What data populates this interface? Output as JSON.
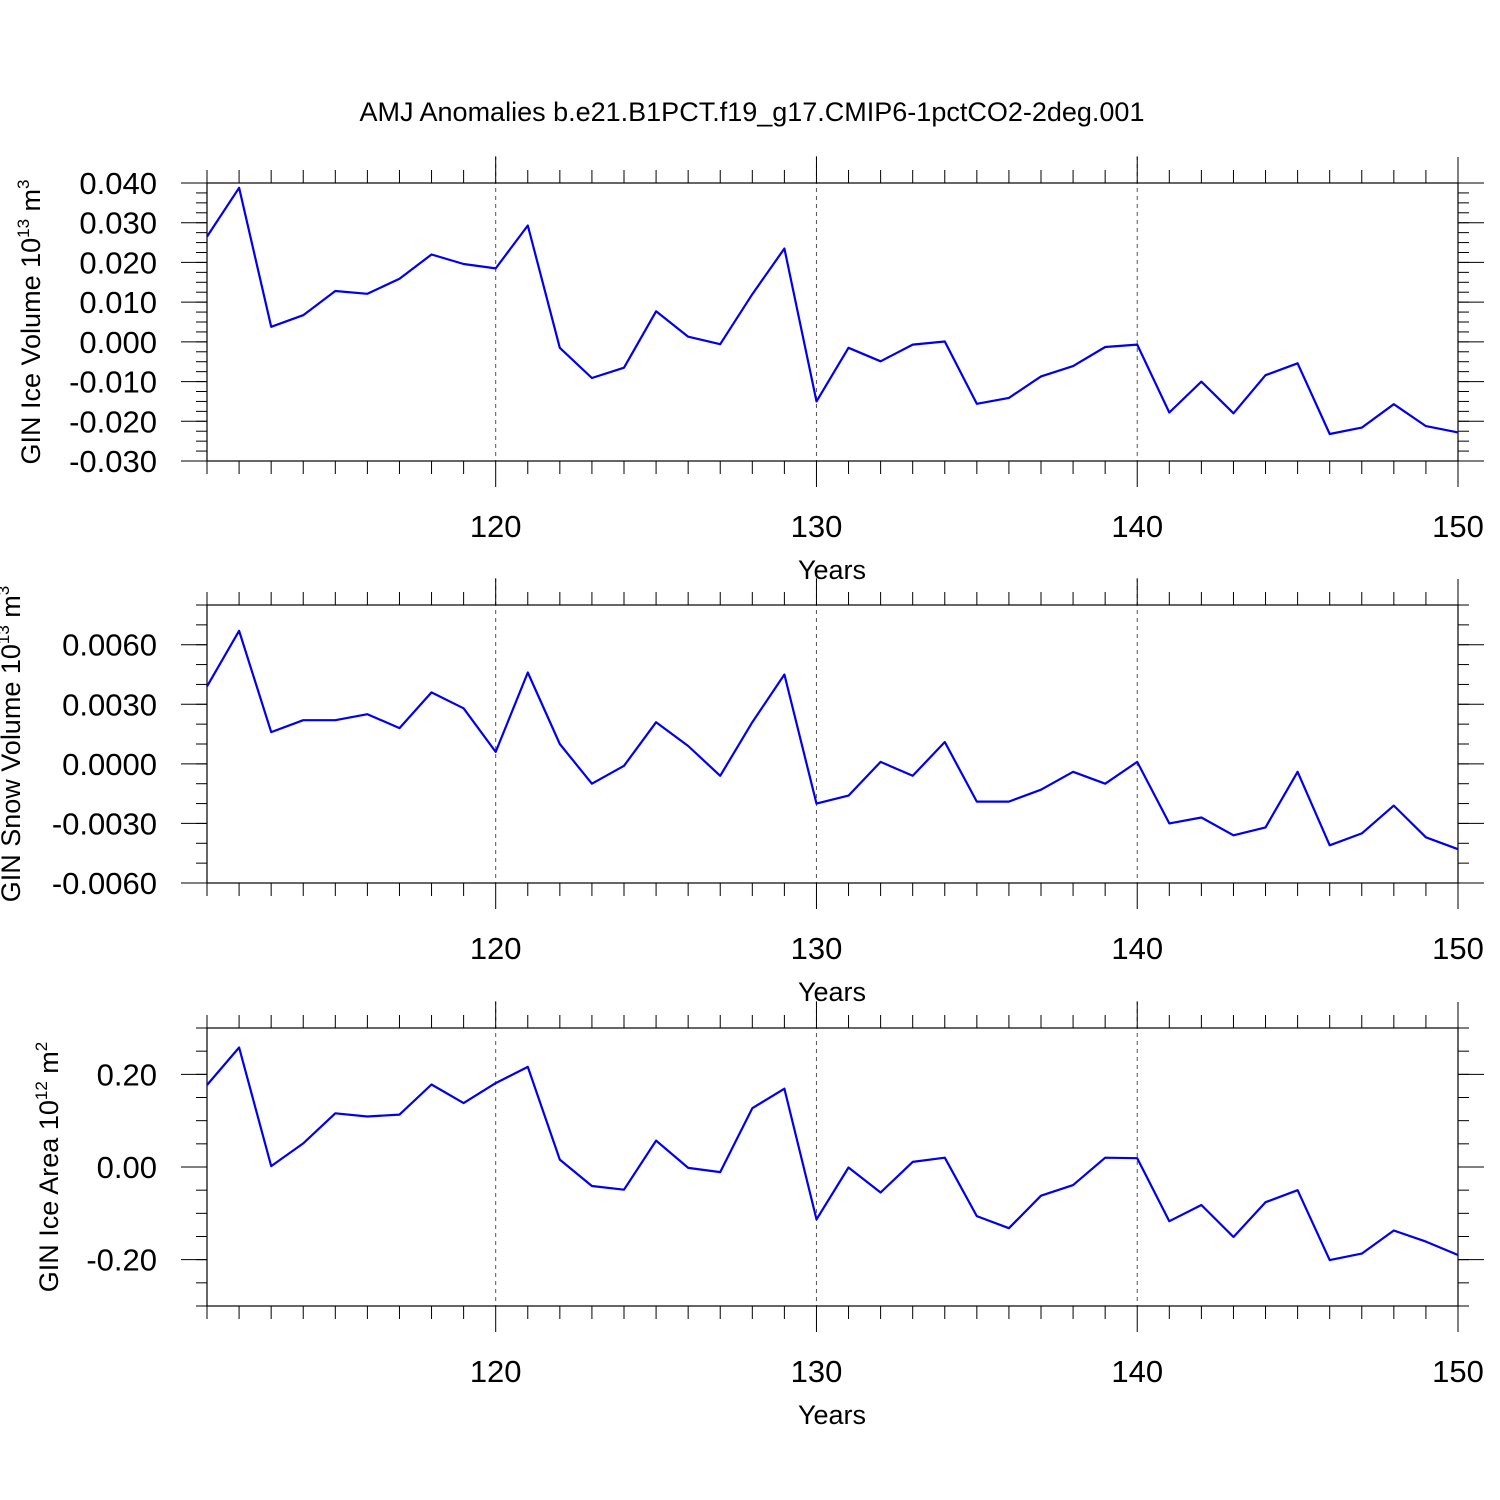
{
  "title": "AMJ Anomalies b.e21.B1PCT.f19_g17.CMIP6-1pctCO2-2deg.001",
  "colors": {
    "series": "#0000ee",
    "frame": "#000000",
    "grid": "#555555"
  },
  "chart_data": [
    {
      "type": "line",
      "ylabel": "GIN Ice Volume 10",
      "ylabel_exp": "13",
      "ylabel_unit": "m",
      "ylabel_unit_exp": "3",
      "xlabel": "Years",
      "xlim": [
        111,
        150
      ],
      "ylim": [
        -0.03,
        0.04
      ],
      "yticks": [
        -0.03,
        -0.02,
        -0.01,
        0.0,
        0.01,
        0.02,
        0.03,
        0.04
      ],
      "ytick_labels": [
        "-0.030",
        "-0.020",
        "-0.010",
        "0.000",
        "0.010",
        "0.020",
        "0.030",
        "0.040"
      ],
      "xticks": [
        120,
        130,
        140,
        150
      ],
      "xtick_labels": [
        "120",
        "130",
        "140",
        "150"
      ],
      "grid": "vertical dashed at major x ticks",
      "x": [
        111,
        112,
        113,
        114,
        115,
        116,
        117,
        118,
        119,
        120,
        121,
        122,
        123,
        124,
        125,
        126,
        127,
        128,
        129,
        130,
        131,
        132,
        133,
        134,
        135,
        136,
        137,
        138,
        139,
        140,
        141,
        142,
        143,
        144,
        145,
        146,
        147,
        148,
        149,
        150
      ],
      "y": [
        0.0265,
        0.0388,
        0.0038,
        0.0067,
        0.0128,
        0.0121,
        0.0159,
        0.022,
        0.0196,
        0.0185,
        0.0293,
        -0.0015,
        -0.0091,
        -0.0065,
        0.0077,
        0.0013,
        -0.0006,
        0.012,
        0.0235,
        -0.015,
        -0.0015,
        -0.0049,
        -0.0007,
        0.0001,
        -0.0156,
        -0.0141,
        -0.0087,
        -0.0061,
        -0.0013,
        -0.0007,
        -0.0178,
        -0.01,
        -0.018,
        -0.0084,
        -0.0054,
        -0.0232,
        -0.0216,
        -0.0157,
        -0.0212,
        -0.0228
      ]
    },
    {
      "type": "line",
      "ylabel": "GIN Snow Volume 10",
      "ylabel_exp": "13",
      "ylabel_unit": "m",
      "ylabel_unit_exp": "3",
      "xlabel": "Years",
      "xlim": [
        111,
        150
      ],
      "ylim": [
        -0.006,
        0.008
      ],
      "yticks": [
        -0.006,
        -0.003,
        0.0,
        0.003,
        0.006
      ],
      "ytick_labels": [
        "-0.0060",
        "-0.0030",
        "0.0000",
        "0.0030",
        "0.0060"
      ],
      "xticks": [
        120,
        130,
        140,
        150
      ],
      "xtick_labels": [
        "120",
        "130",
        "140",
        "150"
      ],
      "grid": "vertical dashed at major x ticks",
      "x": [
        111,
        112,
        113,
        114,
        115,
        116,
        117,
        118,
        119,
        120,
        121,
        122,
        123,
        124,
        125,
        126,
        127,
        128,
        129,
        130,
        131,
        132,
        133,
        134,
        135,
        136,
        137,
        138,
        139,
        140,
        141,
        142,
        143,
        144,
        145,
        146,
        147,
        148,
        149,
        150
      ],
      "y": [
        0.0039,
        0.0067,
        0.0016,
        0.0022,
        0.0022,
        0.0025,
        0.0018,
        0.0036,
        0.0028,
        0.0006,
        0.0046,
        0.001,
        -0.001,
        -0.0001,
        0.0021,
        0.0009,
        -0.0006,
        0.0021,
        0.0045,
        -0.002,
        -0.0016,
        0.0001,
        -0.0006,
        0.0011,
        -0.0019,
        -0.0019,
        -0.0013,
        -0.0004,
        -0.001,
        0.0001,
        -0.003,
        -0.0027,
        -0.0036,
        -0.0032,
        -0.0004,
        -0.0041,
        -0.0035,
        -0.0021,
        -0.0037,
        -0.0043
      ]
    },
    {
      "type": "line",
      "ylabel": "GIN Ice Area 10",
      "ylabel_exp": "12",
      "ylabel_unit": "m",
      "ylabel_unit_exp": "2",
      "xlabel": "Years",
      "xlim": [
        111,
        150
      ],
      "ylim": [
        -0.3,
        0.3
      ],
      "yticks": [
        -0.2,
        0.0,
        0.2
      ],
      "ytick_labels": [
        "-0.20",
        "0.00",
        "0.20"
      ],
      "xticks": [
        120,
        130,
        140,
        150
      ],
      "xtick_labels": [
        "120",
        "130",
        "140",
        "150"
      ],
      "grid": "vertical dashed at major x ticks",
      "x": [
        111,
        112,
        113,
        114,
        115,
        116,
        117,
        118,
        119,
        120,
        121,
        122,
        123,
        124,
        125,
        126,
        127,
        128,
        129,
        130,
        131,
        132,
        133,
        134,
        135,
        136,
        137,
        138,
        139,
        140,
        141,
        142,
        143,
        144,
        145,
        146,
        147,
        148,
        149,
        150
      ],
      "y": [
        0.177,
        0.258,
        0.002,
        0.051,
        0.116,
        0.109,
        0.113,
        0.178,
        0.138,
        0.181,
        0.216,
        0.016,
        -0.041,
        -0.049,
        0.057,
        -0.002,
        -0.011,
        0.127,
        0.169,
        -0.113,
        -0.001,
        -0.055,
        0.011,
        0.02,
        -0.106,
        -0.132,
        -0.062,
        -0.039,
        0.02,
        0.019,
        -0.117,
        -0.082,
        -0.151,
        -0.076,
        -0.05,
        -0.201,
        -0.187,
        -0.137,
        -0.161,
        -0.19
      ]
    }
  ]
}
